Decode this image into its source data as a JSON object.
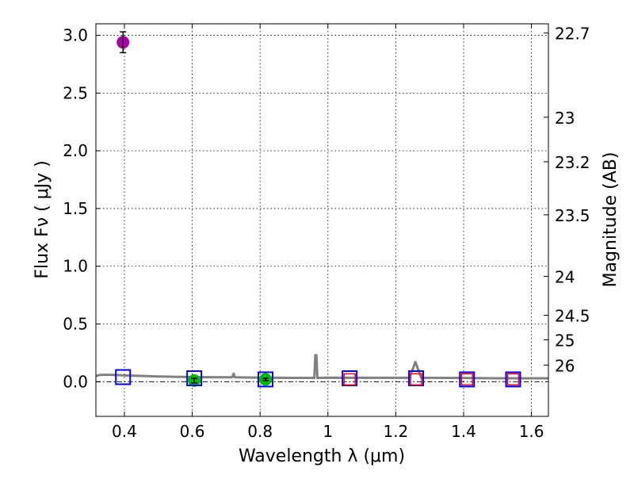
{
  "chart_data": {
    "type": "scatter",
    "xlabel": "Wavelength  λ (μm)",
    "ylabel": "Flux  Fν  ( μJy )",
    "y2label": "Magnitude (AB)",
    "xlim": [
      0.316,
      1.65
    ],
    "ylim": [
      -0.3,
      3.1
    ],
    "grid": true,
    "x_ticks": [
      0.4,
      0.6,
      0.8,
      1.0,
      1.2,
      1.4,
      1.6
    ],
    "x_tick_labels": [
      "0.4",
      "0.6",
      "0.8",
      "1",
      "1.2",
      "1.4",
      "1.6"
    ],
    "y_ticks": [
      0.0,
      0.5,
      1.0,
      1.5,
      2.0,
      2.5,
      3.0
    ],
    "y_tick_labels": [
      "0.0",
      "0.5",
      "1.0",
      "1.5",
      "2.0",
      "2.5",
      "3.0"
    ],
    "mag_ticks": [
      22.7,
      23,
      23.2,
      23.5,
      24,
      24.5,
      25,
      26
    ],
    "mag_tick_labels": [
      "22.7",
      "23",
      "23.2",
      "23.5",
      "24",
      "24.5",
      "25",
      "26"
    ],
    "mag_zeropoint": 23.9,
    "colors": {
      "spectrum": "#808080",
      "detected_blue": "#aa00aa",
      "detected_green": "#00bb00",
      "model_blue": "#0000ff",
      "model_red": "#ff0000"
    },
    "series": [
      {
        "name": "spectrum",
        "kind": "line",
        "x": [
          0.316,
          0.33,
          0.36,
          0.4,
          0.45,
          0.5,
          0.6,
          0.7,
          0.718,
          0.722,
          0.726,
          0.8,
          0.9,
          0.96,
          0.963,
          0.966,
          0.969,
          1.0,
          1.1,
          1.24,
          1.258,
          1.275,
          1.4,
          1.5,
          1.65
        ],
        "y": [
          0.05,
          0.06,
          0.06,
          0.055,
          0.05,
          0.045,
          0.04,
          0.038,
          0.038,
          0.07,
          0.038,
          0.035,
          0.033,
          0.033,
          0.23,
          0.23,
          0.033,
          0.035,
          0.034,
          0.034,
          0.17,
          0.034,
          0.032,
          0.03,
          0.03
        ]
      },
      {
        "name": "photometry-violet",
        "kind": "points",
        "x": [
          0.396
        ],
        "y": [
          2.94
        ],
        "yerr": [
          0.09
        ]
      },
      {
        "name": "photometry-green",
        "kind": "points",
        "x": [
          0.606,
          0.816
        ],
        "y": [
          0.01,
          0.02
        ],
        "yerr": [
          0.02,
          0.01
        ]
      },
      {
        "name": "model-blue",
        "kind": "squares",
        "x": [
          0.396,
          0.606,
          0.816,
          1.064,
          1.26,
          1.41,
          1.546
        ],
        "y": [
          0.04,
          0.03,
          0.02,
          0.03,
          0.03,
          0.02,
          0.02
        ]
      },
      {
        "name": "model-red",
        "kind": "squares",
        "x": [
          1.064,
          1.26,
          1.41,
          1.546
        ],
        "y": [
          0.02,
          0.02,
          0.02,
          0.02
        ]
      }
    ]
  }
}
